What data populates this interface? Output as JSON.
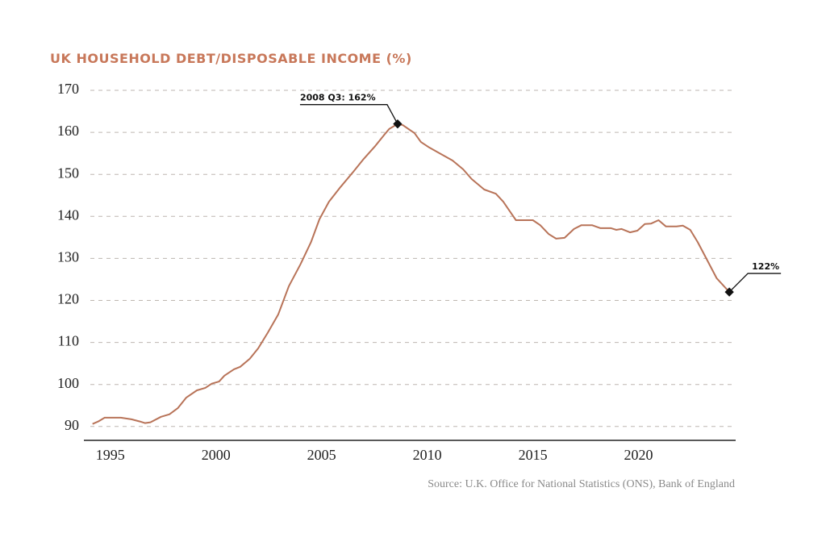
{
  "chart_data": {
    "type": "line",
    "title": "UK HOUSEHOLD DEBT/DISPOSABLE INCOME (%)",
    "source": "Source: U.K. Office for National Statistics (ONS), Bank of England",
    "xlim": [
      1993.75,
      2024.6
    ],
    "xticks": [
      1995,
      2000,
      2005,
      2010,
      2015,
      2020
    ],
    "ylim": [
      86.7,
      170
    ],
    "yticks": [
      90,
      100,
      110,
      120,
      130,
      140,
      150,
      160,
      170
    ],
    "grid": true,
    "series": [
      {
        "color": "#b87358",
        "x": [
          1994.16,
          1994.43,
          1994.73,
          1995.5,
          1996.0,
          1996.4,
          1996.64,
          1996.9,
          1997.4,
          1997.8,
          1998.2,
          1998.6,
          1999.1,
          1999.5,
          1999.8,
          2000.15,
          2000.4,
          2000.85,
          2001.15,
          2001.6,
          2002.0,
          2002.45,
          2002.95,
          2003.45,
          2004.0,
          2004.5,
          2004.9,
          2005.35,
          2005.9,
          2006.5,
          2007.0,
          2007.55,
          2007.95,
          2008.2,
          2008.6,
          2008.85,
          2009.4,
          2009.7,
          2010.1,
          2010.6,
          2011.2,
          2011.7,
          2012.1,
          2012.7,
          2013.25,
          2013.6,
          2014.2,
          2015.0,
          2015.35,
          2015.75,
          2016.1,
          2016.5,
          2016.95,
          2017.3,
          2017.8,
          2018.2,
          2018.7,
          2018.95,
          2019.2,
          2019.6,
          2019.95,
          2020.3,
          2020.6,
          2020.95,
          2021.3,
          2021.8,
          2022.1,
          2022.45,
          2022.8,
          2023.2,
          2023.7,
          2024.3
        ],
        "values": [
          90.6,
          91.2,
          92.1,
          92.1,
          91.7,
          91.2,
          90.8,
          91.0,
          92.3,
          92.9,
          94.4,
          96.9,
          98.6,
          99.2,
          100.2,
          100.7,
          102.1,
          103.6,
          104.2,
          106.1,
          108.6,
          112.3,
          116.7,
          123.4,
          128.6,
          133.9,
          139.3,
          143.5,
          147.0,
          150.6,
          153.7,
          156.8,
          159.3,
          160.8,
          162,
          161.7,
          159.8,
          157.7,
          156.4,
          155.0,
          153.3,
          151.2,
          148.9,
          146.4,
          145.4,
          143.5,
          139.1,
          139.1,
          137.9,
          135.8,
          134.7,
          134.9,
          137.0,
          137.9,
          137.9,
          137.2,
          137.2,
          136.8,
          137.0,
          136.2,
          136.6,
          138.2,
          138.3,
          139.1,
          137.6,
          137.6,
          137.8,
          136.8,
          133.9,
          130.1,
          125.3,
          122.0
        ]
      }
    ],
    "annotations": [
      {
        "text": "2008 Q3: 162%",
        "x": 2008.6,
        "y": 162
      },
      {
        "text": "122%",
        "x": 2024.3,
        "y": 122
      }
    ]
  }
}
